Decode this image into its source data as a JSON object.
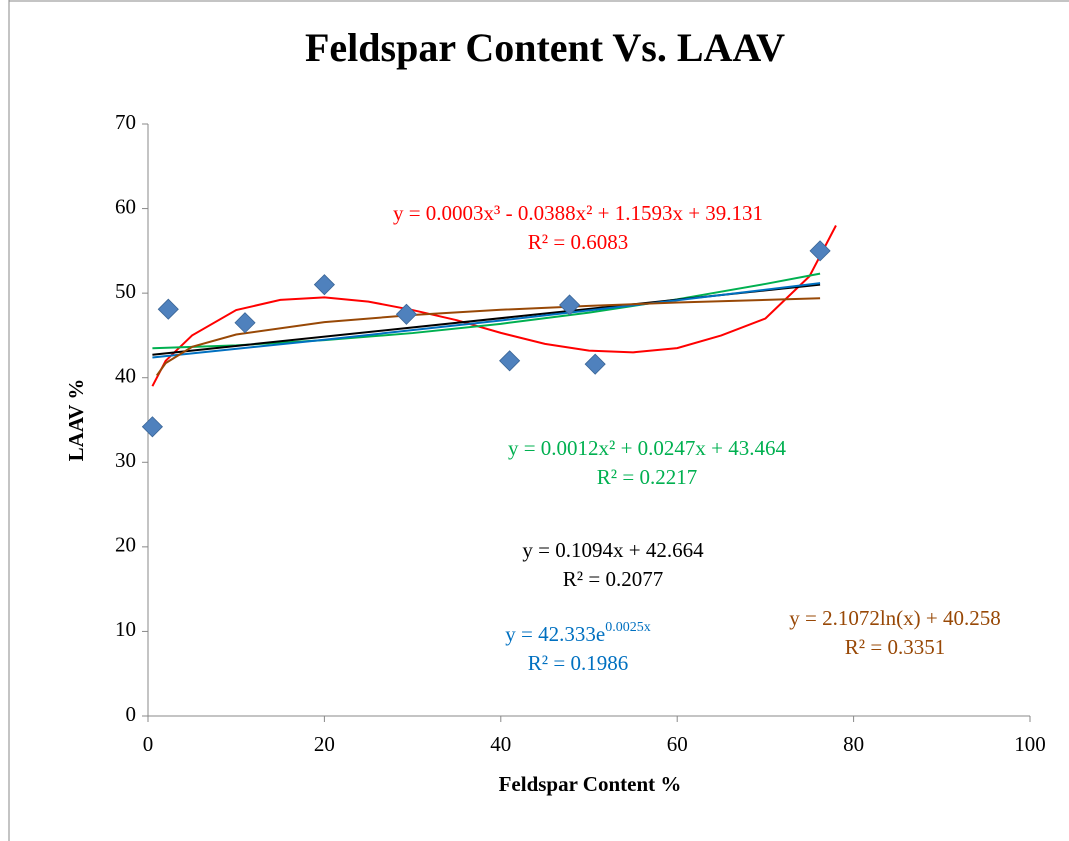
{
  "chart_data": {
    "type": "scatter",
    "title": "Feldspar Content Vs. LAAV",
    "x_label": "Feldspar Content %",
    "y_label": "LAAV %",
    "xlim": [
      0,
      100
    ],
    "xticks": [
      0,
      20,
      40,
      60,
      80,
      100
    ],
    "ylim": [
      0,
      70
    ],
    "yticks": [
      0,
      10,
      20,
      30,
      40,
      50,
      60,
      70
    ],
    "points": {
      "color": "#4f81bd",
      "x": [
        0.5,
        2.3,
        11,
        20,
        29.3,
        41,
        47.8,
        50.7,
        76.2
      ],
      "values": [
        34.2,
        48.1,
        46.5,
        51,
        47.5,
        42,
        48.6,
        41.6,
        55
      ]
    },
    "trendlines": [
      {
        "color": "#ff0000",
        "equation": "y = 0.0003x³ - 0.0388x² + 1.1593x + 39.131",
        "r2": "R² = 0.6083",
        "x": [
          0.5,
          2,
          5,
          10,
          15,
          20,
          25,
          30,
          35,
          40,
          45,
          50,
          55,
          60,
          65,
          70,
          75,
          78
        ],
        "values": [
          39,
          42,
          45,
          48,
          49.2,
          49.5,
          49,
          48,
          46.8,
          45.3,
          44,
          43.2,
          43,
          43.5,
          45,
          47,
          52,
          58
        ]
      },
      {
        "color": "#00b050",
        "equation": "y = 0.0012x² + 0.0247x + 43.464",
        "r2": "R² = 0.2217",
        "x": [
          0.5,
          10,
          20,
          30,
          40,
          50,
          60,
          70,
          76.2
        ],
        "values": [
          43.48,
          43.83,
          44.44,
          45.28,
          46.37,
          47.7,
          49.27,
          51.09,
          52.31
        ]
      },
      {
        "color": "#000000",
        "equation": "y = 0.1094x + 42.664",
        "r2": "R² = 0.2077",
        "x": [
          0.5,
          76.2
        ],
        "values": [
          42.72,
          51.0
        ]
      },
      {
        "color": "#0070c0",
        "equation": "y = 42.333e",
        "equation_sup": "0.0025x",
        "r2": "R² = 0.1986",
        "x": [
          0.5,
          20,
          40,
          60,
          76.2
        ],
        "values": [
          42.39,
          44.49,
          46.77,
          49.16,
          51.18
        ]
      },
      {
        "color": "#984806",
        "equation": "y = 2.1072ln(x) + 40.258",
        "r2": "R² = 0.3351",
        "x": [
          1,
          2,
          5,
          10,
          20,
          30,
          40,
          50,
          60,
          76.2
        ],
        "values": [
          40.26,
          41.72,
          43.65,
          45.11,
          46.57,
          47.42,
          48.03,
          48.5,
          48.89,
          49.39
        ]
      }
    ]
  }
}
